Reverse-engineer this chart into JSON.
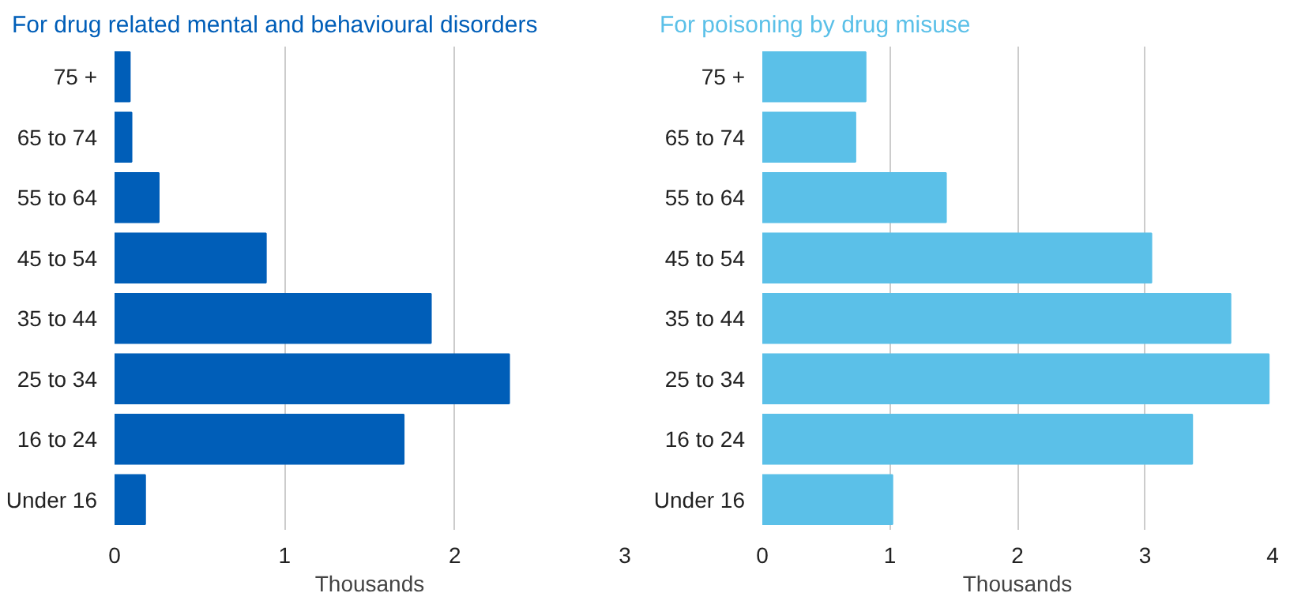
{
  "chart_data": [
    {
      "type": "bar",
      "orientation": "horizontal",
      "title": "For drug related mental and behavioural disorders",
      "xlabel": "Thousands",
      "categories": [
        "75 +",
        "65 to 74",
        "55 to 64",
        "45 to 54",
        "35 to 44",
        "25 to 34",
        "16 to 24",
        "Under 16"
      ],
      "values": [
        0.09,
        0.1,
        0.26,
        0.89,
        1.86,
        2.32,
        1.7,
        0.18
      ],
      "color": "#005eb8",
      "xlim": [
        0,
        3
      ],
      "xticks": [
        0,
        1,
        2,
        3
      ],
      "grid": "x"
    },
    {
      "type": "bar",
      "orientation": "horizontal",
      "title": "For poisoning by drug misuse",
      "xlabel": "Thousands",
      "categories": [
        "75 +",
        "65 to 74",
        "55 to 64",
        "45 to 54",
        "35 to 44",
        "25 to 34",
        "16 to 24",
        "Under 16"
      ],
      "values": [
        0.81,
        0.73,
        1.44,
        3.05,
        3.67,
        3.97,
        3.37,
        1.02
      ],
      "color": "#5bc0e8",
      "xlim": [
        0,
        4
      ],
      "xticks": [
        0,
        1,
        2,
        3,
        4
      ],
      "grid": "x"
    }
  ]
}
